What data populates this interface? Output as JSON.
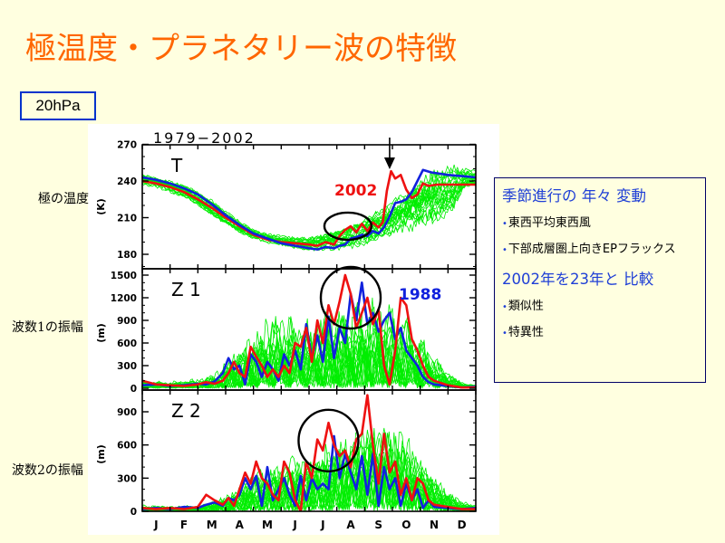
{
  "title": "極温度・プラネタリー波の特徴",
  "level_label": "20hPa",
  "row_labels": [
    "極の温度",
    "波数1の振幅",
    "波数2の振幅"
  ],
  "notes": {
    "heading1": "季節進行の 年々 変動",
    "items1": [
      "東西平均東西風",
      "下部成層圏上向きEPフラックス"
    ],
    "heading2": "2002年を23年と 比較",
    "items2": [
      "類似性",
      "特異性"
    ],
    "bullet": "•"
  },
  "colors": {
    "title": "#ff6600",
    "ensemble": "#00ee00",
    "year_2002": "#ee1111",
    "year_1988": "#1122dd",
    "note_heading": "#1f3fd6"
  },
  "chart_data": {
    "type": "line",
    "period_label": "1979−2002",
    "x_tick_labels": [
      "J",
      "F",
      "M",
      "A",
      "M",
      "J",
      "J",
      "A",
      "S",
      "O",
      "N",
      "D"
    ],
    "x_unit": "month (1 = Jan, 13 = end of Dec)",
    "xlim": [
      1,
      13
    ],
    "panels": [
      {
        "name": "T",
        "panel_label": "T",
        "ylabel": "(K)",
        "ylim": [
          170,
          270
        ],
        "yticks": [
          180,
          210,
          240,
          270
        ],
        "annotations": [
          {
            "text": "2002",
            "color": "red"
          },
          {
            "text": "arrow",
            "type": "down-arrow",
            "at_month": 9.9
          }
        ],
        "circle": {
          "center_month": 8.4,
          "center_value": 203
        },
        "series": [
          {
            "name": "2002",
            "x": [
              1,
              1.5,
              2,
              2.5,
              3,
              3.5,
              4,
              4.5,
              5,
              5.5,
              6,
              6.5,
              7,
              7.3,
              7.6,
              7.9,
              8.1,
              8.3,
              8.5,
              8.7,
              8.9,
              9.1,
              9.3,
              9.5,
              9.65,
              9.8,
              9.95,
              10.1,
              10.3,
              10.5,
              10.7,
              10.9,
              11.1,
              11.3,
              11.6,
              12,
              12.5,
              13
            ],
            "y": [
              240,
              238,
              235,
              231,
              225,
              218,
              210,
              203,
              196,
              192,
              190,
              189,
              188,
              187,
              190,
              188,
              195,
              200,
              203,
              198,
              205,
              199,
              206,
              202,
              206,
              232,
              248,
              242,
              245,
              233,
              226,
              229,
              238,
              236,
              237,
              237,
              237,
              237
            ]
          },
          {
            "name": "1988",
            "x": [
              1,
              1.5,
              2,
              2.5,
              3,
              3.5,
              4,
              4.5,
              5,
              5.5,
              6,
              6.5,
              7,
              7.3,
              7.6,
              7.9,
              8.1,
              8.3,
              8.5,
              8.7,
              8.9,
              9.1,
              9.3,
              9.5,
              9.7,
              9.9,
              10.1,
              10.3,
              10.5,
              10.7,
              10.9,
              11.1,
              11.4,
              11.7,
              12,
              12.5,
              13
            ],
            "y": [
              243,
              241,
              238,
              234,
              229,
              221,
              212,
              204,
              197,
              193,
              189,
              187,
              185,
              184,
              186,
              185,
              187,
              188,
              193,
              194,
              196,
              195,
              199,
              197,
              202,
              211,
              222,
              223,
              225,
              231,
              240,
              249,
              247,
              246,
              245,
              244,
              243
            ]
          },
          {
            "name": "ensemble",
            "kind": "spread",
            "lower": [
              236,
              234,
              230,
              226,
              220,
              212,
              205,
              198,
              193,
              189,
              186,
              184,
              183,
              183,
              185,
              186,
              188,
              190,
              193,
              196,
              200,
              205,
              212,
              222,
              232,
              236,
              237,
              237
            ],
            "upper": [
              246,
              244,
              241,
              237,
              231,
              224,
              215,
              207,
              201,
              198,
              196,
              195,
              194,
              196,
              199,
              203,
              208,
              215,
              224,
              235,
              244,
              250,
              251,
              250,
              249,
              249,
              248,
              248
            ],
            "x": [
              1,
              1.5,
              2,
              2.5,
              3,
              3.5,
              4,
              4.5,
              5,
              5.5,
              6,
              6.5,
              7,
              7.5,
              8,
              8.5,
              9,
              9.5,
              10,
              10.5,
              11,
              11.5,
              12,
              12.3,
              12.5,
              12.7,
              12.9,
              13
            ]
          }
        ]
      },
      {
        "name": "Z1",
        "panel_label": "Z 1",
        "ylabel": "(m)",
        "ylim": [
          0,
          1600
        ],
        "yticks": [
          0,
          300,
          600,
          900,
          1200,
          1500
        ],
        "annotations": [
          {
            "text": "1988",
            "color": "blue"
          }
        ],
        "circle": {
          "center_month": 8.5,
          "center_value": 1200
        },
        "series": [
          {
            "name": "2002",
            "x": [
              1,
              1.5,
              2,
              2.5,
              3,
              3.3,
              3.6,
              3.9,
              4.1,
              4.3,
              4.5,
              4.7,
              4.9,
              5.1,
              5.3,
              5.5,
              5.7,
              5.9,
              6.1,
              6.3,
              6.5,
              6.7,
              6.9,
              7.1,
              7.3,
              7.5,
              7.7,
              7.9,
              8.1,
              8.3,
              8.5,
              8.7,
              8.9,
              9.1,
              9.3,
              9.5,
              9.7,
              9.9,
              10.1,
              10.3,
              10.5,
              10.7,
              10.9,
              11.1,
              11.3,
              11.5,
              12,
              12.5,
              13
            ],
            "y": [
              100,
              50,
              40,
              30,
              50,
              80,
              60,
              100,
              200,
              350,
              200,
              150,
              550,
              420,
              300,
              150,
              250,
              150,
              300,
              200,
              600,
              550,
              800,
              350,
              900,
              600,
              1100,
              850,
              1150,
              1500,
              1250,
              800,
              1000,
              1200,
              850,
              1050,
              300,
              50,
              500,
              1200,
              1100,
              650,
              500,
              300,
              150,
              100,
              40,
              10,
              10
            ]
          },
          {
            "name": "1988",
            "x": [
              1,
              1.5,
              2,
              2.5,
              3,
              3.3,
              3.6,
              3.9,
              4.1,
              4.3,
              4.5,
              4.7,
              4.9,
              5.1,
              5.3,
              5.5,
              5.7,
              5.9,
              6.1,
              6.3,
              6.5,
              6.7,
              6.9,
              7.1,
              7.3,
              7.5,
              7.7,
              7.9,
              8.1,
              8.3,
              8.5,
              8.7,
              8.9,
              9.1,
              9.3,
              9.5,
              9.7,
              9.9,
              10.1,
              10.3,
              10.5,
              10.7,
              10.9,
              11.1,
              11.3,
              11.5,
              12,
              12.5,
              13
            ],
            "y": [
              40,
              50,
              30,
              40,
              60,
              50,
              90,
              200,
              400,
              250,
              300,
              50,
              450,
              350,
              150,
              350,
              250,
              100,
              450,
              300,
              500,
              250,
              850,
              400,
              700,
              350,
              950,
              400,
              800,
              600,
              1250,
              900,
              1400,
              850,
              1000,
              750,
              900,
              1000,
              650,
              800,
              500,
              400,
              300,
              150,
              80,
              50,
              30,
              10,
              20
            ]
          },
          {
            "name": "ensemble",
            "kind": "spread",
            "x": [
              1,
              2,
              3,
              3.5,
              4,
              4.5,
              5,
              5.5,
              6,
              6.5,
              7,
              7.5,
              8,
              8.5,
              9,
              9.5,
              10,
              10.5,
              11,
              11.5,
              12,
              12.5,
              13
            ],
            "lower": [
              0,
              0,
              0,
              0,
              0,
              0,
              0,
              0,
              0,
              0,
              0,
              0,
              0,
              0,
              0,
              0,
              0,
              0,
              0,
              0,
              0,
              0,
              0
            ],
            "upper": [
              120,
              100,
              140,
              200,
              400,
              650,
              850,
              1050,
              1100,
              1050,
              1000,
              1100,
              1200,
              1300,
              1350,
              1300,
              1250,
              1050,
              800,
              500,
              250,
              100,
              40
            ]
          }
        ]
      },
      {
        "name": "Z2",
        "panel_label": "Z 2",
        "ylabel": "(m)",
        "ylim": [
          0,
          1050
        ],
        "yticks": [
          0,
          300,
          600,
          900
        ],
        "circle": {
          "center_month": 7.7,
          "center_value": 640
        },
        "series": [
          {
            "name": "2002",
            "x": [
              1,
              1.5,
              2,
              2.5,
              3,
              3.3,
              3.6,
              3.9,
              4.1,
              4.3,
              4.5,
              4.7,
              4.9,
              5.1,
              5.3,
              5.5,
              5.7,
              5.9,
              6.1,
              6.3,
              6.5,
              6.7,
              6.9,
              7.1,
              7.3,
              7.5,
              7.7,
              7.9,
              8.1,
              8.3,
              8.5,
              8.7,
              8.9,
              9.1,
              9.3,
              9.5,
              9.7,
              9.9,
              10.1,
              10.3,
              10.5,
              10.7,
              10.9,
              11.1,
              11.3,
              11.5,
              12,
              12.5,
              13
            ],
            "y": [
              30,
              20,
              30,
              20,
              40,
              150,
              100,
              60,
              120,
              50,
              200,
              350,
              250,
              450,
              300,
              250,
              150,
              100,
              450,
              350,
              100,
              0,
              450,
              300,
              650,
              550,
              800,
              600,
              500,
              550,
              400,
              650,
              700,
              1050,
              600,
              250,
              700,
              350,
              450,
              150,
              300,
              100,
              300,
              250,
              100,
              60,
              40,
              20,
              20
            ]
          },
          {
            "name": "1988",
            "x": [
              1,
              1.5,
              2,
              2.5,
              3,
              3.3,
              3.6,
              3.9,
              4.1,
              4.3,
              4.5,
              4.7,
              4.9,
              5.1,
              5.3,
              5.5,
              5.7,
              5.9,
              6.1,
              6.3,
              6.5,
              6.7,
              6.9,
              7.1,
              7.3,
              7.5,
              7.7,
              7.9,
              8.1,
              8.3,
              8.5,
              8.7,
              8.9,
              9.1,
              9.3,
              9.5,
              9.7,
              9.9,
              10.1,
              10.3,
              10.5,
              10.7,
              10.9,
              11.1,
              11.3,
              11.5,
              12,
              12.5,
              13
            ],
            "y": [
              20,
              30,
              20,
              40,
              30,
              60,
              80,
              50,
              120,
              100,
              150,
              300,
              200,
              320,
              50,
              400,
              100,
              200,
              300,
              150,
              50,
              320,
              100,
              300,
              200,
              250,
              200,
              680,
              300,
              520,
              350,
              200,
              500,
              150,
              520,
              50,
              400,
              200,
              300,
              50,
              250,
              100,
              200,
              30,
              100,
              40,
              30,
              20,
              30
            ]
          },
          {
            "name": "ensemble",
            "kind": "spread",
            "x": [
              1,
              2,
              3,
              3.5,
              4,
              4.5,
              5,
              5.5,
              6,
              6.5,
              7,
              7.5,
              8,
              8.5,
              9,
              9.5,
              10,
              10.5,
              11,
              11.5,
              12,
              12.5,
              13
            ],
            "lower": [
              0,
              0,
              0,
              0,
              0,
              0,
              0,
              0,
              0,
              0,
              0,
              0,
              0,
              0,
              0,
              0,
              0,
              0,
              0,
              0,
              0,
              0,
              0
            ],
            "upper": [
              60,
              50,
              60,
              100,
              150,
              250,
              380,
              430,
              480,
              520,
              550,
              600,
              700,
              800,
              850,
              900,
              850,
              750,
              550,
              350,
              200,
              100,
              60
            ]
          }
        ]
      }
    ]
  }
}
